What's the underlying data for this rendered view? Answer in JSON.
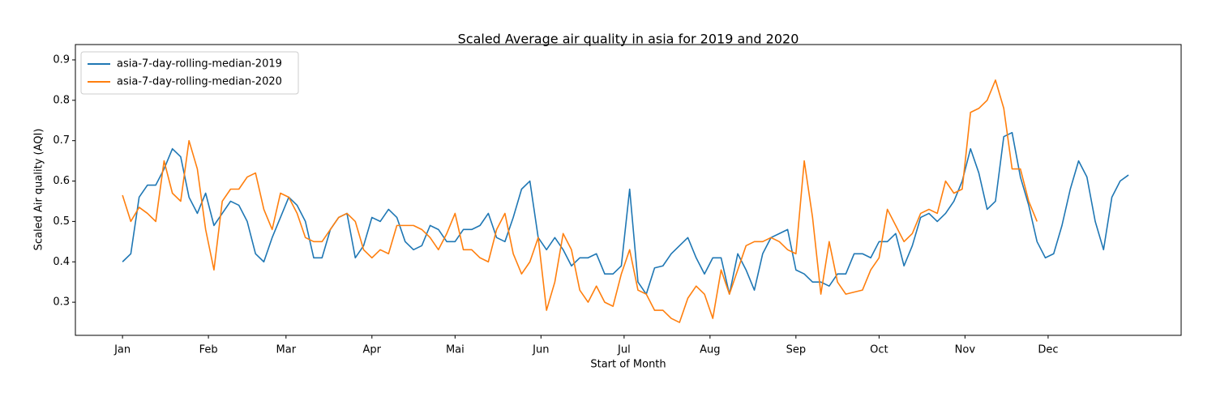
{
  "chart_data": {
    "type": "line",
    "title": "Scaled Average air quality in asia for 2019 and 2020",
    "xlabel": "Start of Month",
    "ylabel": "Scaled Air quality (AQI)",
    "x": [
      0,
      3,
      6,
      9,
      12,
      15,
      18,
      21,
      24,
      27,
      30,
      33,
      36,
      39,
      42,
      45,
      48,
      51,
      54,
      57,
      60,
      63,
      66,
      69,
      72,
      75,
      78,
      81,
      84,
      87,
      90,
      93,
      96,
      99,
      102,
      105,
      108,
      111,
      114,
      117,
      120,
      123,
      126,
      129,
      132,
      135,
      138,
      141,
      144,
      147,
      150,
      153,
      156,
      159,
      162,
      165,
      168,
      171,
      174,
      177,
      180,
      183,
      186,
      189,
      192,
      195,
      198,
      201,
      204,
      207,
      210,
      213,
      216,
      219,
      222,
      225,
      228,
      231,
      234,
      237,
      240,
      243,
      246,
      249,
      252,
      255,
      258,
      261,
      264,
      267,
      270,
      273,
      276,
      279,
      282,
      285,
      288,
      291,
      294,
      297,
      300,
      303,
      306,
      309,
      312,
      315,
      318,
      321,
      324,
      327,
      330,
      333,
      336,
      339,
      342,
      345,
      348,
      351,
      354,
      357,
      360,
      363
    ],
    "series": [
      {
        "name": "asia-7-day-rolling-median-2019",
        "color": "#1f77b4",
        "values": [
          0.4,
          0.42,
          0.56,
          0.59,
          0.59,
          0.63,
          0.68,
          0.66,
          0.56,
          0.52,
          0.57,
          0.49,
          0.52,
          0.55,
          0.54,
          0.5,
          0.42,
          0.4,
          0.46,
          0.51,
          0.56,
          0.54,
          0.5,
          0.41,
          0.41,
          0.48,
          0.51,
          0.52,
          0.41,
          0.44,
          0.51,
          0.5,
          0.53,
          0.51,
          0.45,
          0.43,
          0.44,
          0.49,
          0.48,
          0.45,
          0.45,
          0.48,
          0.48,
          0.49,
          0.52,
          0.46,
          0.45,
          0.51,
          0.58,
          0.6,
          0.46,
          0.43,
          0.46,
          0.43,
          0.39,
          0.41,
          0.41,
          0.42,
          0.37,
          0.37,
          0.39,
          0.58,
          0.35,
          0.32,
          0.385,
          0.39,
          0.42,
          0.44,
          0.46,
          0.41,
          0.37,
          0.41,
          0.41,
          0.32,
          0.42,
          0.38,
          0.33,
          0.42,
          0.46,
          0.47,
          0.48,
          0.38,
          0.37,
          0.35,
          0.35,
          0.34,
          0.37,
          0.37,
          0.42,
          0.42,
          0.41,
          0.45,
          0.45,
          0.47,
          0.39,
          0.44,
          0.51,
          0.52,
          0.5,
          0.52,
          0.55,
          0.6,
          0.68,
          0.62,
          0.53,
          0.55,
          0.71,
          0.72,
          0.61,
          0.54,
          0.45,
          0.41,
          0.42,
          0.49,
          0.58,
          0.65,
          0.61,
          0.5,
          0.43,
          0.56,
          0.6,
          0.615
        ]
      },
      {
        "name": "asia-7-day-rolling-median-2020",
        "color": "#ff7f0e",
        "values": [
          0.565,
          0.5,
          0.535,
          0.52,
          0.5,
          0.65,
          0.57,
          0.55,
          0.7,
          0.63,
          0.48,
          0.38,
          0.55,
          0.58,
          0.58,
          0.61,
          0.62,
          0.53,
          0.48,
          0.57,
          0.56,
          0.52,
          0.46,
          0.45,
          0.45,
          0.48,
          0.51,
          0.52,
          0.5,
          0.43,
          0.41,
          0.43,
          0.42,
          0.49,
          0.49,
          0.49,
          0.48,
          0.46,
          0.43,
          0.47,
          0.52,
          0.43,
          0.43,
          0.41,
          0.4,
          0.48,
          0.52,
          0.42,
          0.37,
          0.4,
          0.46,
          0.28,
          0.35,
          0.47,
          0.43,
          0.33,
          0.3,
          0.34,
          0.3,
          0.29,
          0.37,
          0.43,
          0.33,
          0.32,
          0.28,
          0.28,
          0.26,
          0.25,
          0.31,
          0.34,
          0.32,
          0.26,
          0.38,
          0.32,
          0.38,
          0.44,
          0.45,
          0.45,
          0.46,
          0.45,
          0.43,
          0.42,
          0.65,
          0.51,
          0.32,
          0.45,
          0.35,
          0.32,
          0.325,
          0.33,
          0.38,
          0.41,
          0.53,
          0.49,
          0.45,
          0.47,
          0.52,
          0.53,
          0.52,
          0.6,
          0.57,
          0.58,
          0.77,
          0.78,
          0.8,
          0.85,
          0.78,
          0.63,
          0.63,
          0.55,
          0.5,
          null,
          null,
          null,
          null,
          null,
          null,
          null,
          null,
          null,
          null,
          null
        ]
      }
    ],
    "xlim": [
      -17,
      382
    ],
    "xticks": [
      {
        "value": 0,
        "label": "Jan"
      },
      {
        "value": 31,
        "label": "Feb"
      },
      {
        "value": 59,
        "label": "Mar"
      },
      {
        "value": 90,
        "label": "Apr"
      },
      {
        "value": 120,
        "label": "Mai"
      },
      {
        "value": 151,
        "label": "Jun"
      },
      {
        "value": 181,
        "label": "Jul"
      },
      {
        "value": 212,
        "label": "Aug"
      },
      {
        "value": 243,
        "label": "Sep"
      },
      {
        "value": 273,
        "label": "Oct"
      },
      {
        "value": 304,
        "label": "Nov"
      },
      {
        "value": 334,
        "label": "Dec"
      }
    ],
    "ylim": [
      0.218,
      0.938
    ],
    "yticks": [
      0.3,
      0.4,
      0.5,
      0.6,
      0.7,
      0.8,
      0.9
    ],
    "legend": "upper left",
    "grid": false
  }
}
